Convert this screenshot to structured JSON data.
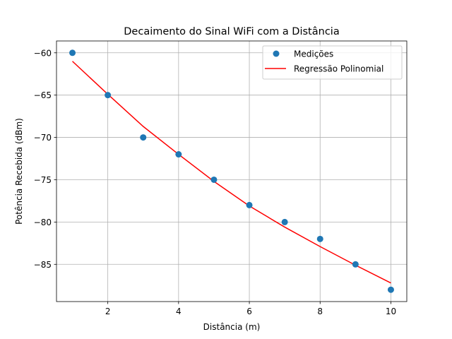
{
  "chart_data": {
    "type": "scatter",
    "title": "Decaimento do Sinal WiFi com a Distância",
    "xlabel": "Distância (m)",
    "ylabel": "Potência Recebida (dBm)",
    "xlim": [
      0.55,
      10.45
    ],
    "ylim": [
      -89.4,
      -58.6
    ],
    "xticks": [
      2,
      4,
      6,
      8,
      10
    ],
    "yticks": [
      -60,
      -65,
      -70,
      -75,
      -80,
      -85
    ],
    "grid": true,
    "legend_position": "top-right",
    "series": [
      {
        "name": "Medições",
        "kind": "scatter",
        "color": "#1f77b4",
        "x": [
          1,
          2,
          3,
          4,
          5,
          6,
          7,
          8,
          9,
          10
        ],
        "y": [
          -60,
          -65,
          -70,
          -72,
          -75,
          -78,
          -80,
          -82,
          -85,
          -88
        ]
      },
      {
        "name": "Regressão Polinomial",
        "kind": "line",
        "color": "#ff0000",
        "x": [
          1,
          2,
          3,
          4,
          5,
          6,
          7,
          8,
          9,
          10
        ],
        "y": [
          -61.0,
          -64.9,
          -68.7,
          -72.0,
          -75.2,
          -78.1,
          -80.6,
          -82.9,
          -85.1,
          -87.2
        ]
      }
    ]
  }
}
